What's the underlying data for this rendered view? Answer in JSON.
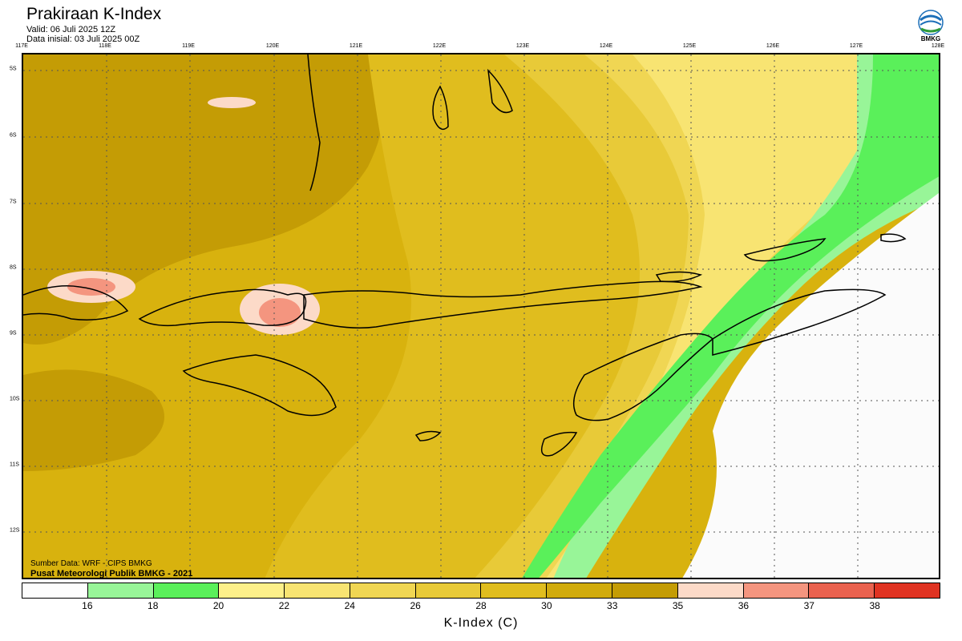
{
  "header": {
    "title": "Prakiraan K-Index",
    "valid": "Valid: 06 Juli 2025 12Z",
    "init": "Data inisial: 03 Juli 2025 00Z",
    "logo_text": "BMKG"
  },
  "map": {
    "lon_labels": [
      "117E",
      "118E",
      "119E",
      "120E",
      "121E",
      "122E",
      "123E",
      "124E",
      "125E",
      "126E",
      "127E",
      "128E"
    ],
    "lat_labels": [
      "5S",
      "6S",
      "7S",
      "8S",
      "9S",
      "10S",
      "11S",
      "12S"
    ],
    "source_text": "Sumber Data: WRF - CIPS BMKG",
    "org_text": "Pusat Meteorologi Publik BMKG - 2021"
  },
  "colorbar": {
    "title": "K-Index (C)",
    "ticks": [
      "16",
      "18",
      "20",
      "22",
      "24",
      "26",
      "28",
      "30",
      "33",
      "35",
      "36",
      "37",
      "38"
    ],
    "colors": [
      "#fdfdfd",
      "#98f598",
      "#5af05a",
      "#fdf08a",
      "#f8e472",
      "#f0d653",
      "#e8ca38",
      "#e0bd1e",
      "#d1ab0c",
      "#c49c05",
      "#fcdac8",
      "#f4957f",
      "#ea624f",
      "#e03322"
    ]
  }
}
